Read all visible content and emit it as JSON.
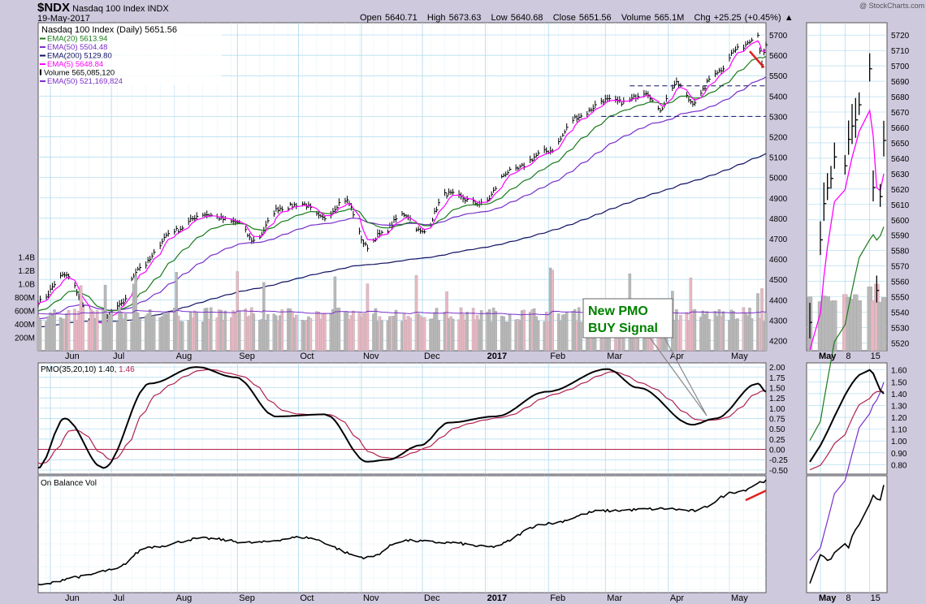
{
  "header": {
    "symbol": "$NDX",
    "name": "Nasdaq 100 Index",
    "exchange": "INDX",
    "date": "19-May-2017",
    "open": "Open 5640.71",
    "high": "High 5673.63",
    "low": "Low 5640.68",
    "close": "Close 5651.56",
    "volume": "Volume 565.1M",
    "change": "Chg +25.25 (+0.45%)",
    "watermark": "@ StockCharts.com"
  },
  "legend": [
    {
      "label": "Nasdaq 100 Index (Daily) 5651.56",
      "color": "#000000"
    },
    {
      "label": "EMA(20) 5613.94",
      "color": "#1a7a1a"
    },
    {
      "label": "EMA(50) 5504.48",
      "color": "#7a2fc8"
    },
    {
      "label": "EMA(200) 5129.80",
      "color": "#101060"
    },
    {
      "label": "EMA(5) 5648.84",
      "color": "#ff00ff"
    },
    {
      "label": "Volume 565,085,120",
      "color": "#000000"
    },
    {
      "label": "EMA(50) 521,169,824",
      "color": "#7a2fc8"
    }
  ],
  "pmo_label": "PMO(35,20,10) 1.40, 1.46",
  "obv_label": "On Balance Vol",
  "annotation": {
    "line1": "New PMO",
    "line2": "BUY Signal"
  },
  "months": [
    "Jun",
    "Jul",
    "Aug",
    "Sep",
    "Oct",
    "Nov",
    "Dec",
    "2017",
    "Feb",
    "Mar",
    "Apr",
    "May"
  ],
  "inset_months": [
    "May",
    "8",
    "15"
  ],
  "price_ticks": [
    "5700",
    "5600",
    "5500",
    "5400",
    "5300",
    "5200",
    "5100",
    "5000",
    "4900",
    "4800",
    "4700",
    "4600",
    "4500",
    "4400",
    "4300",
    "4200"
  ],
  "volume_ticks": [
    "1.4B",
    "1.2B",
    "1.0B",
    "800M",
    "600M",
    "400M",
    "200M"
  ],
  "pmo_ticks": [
    "2.00",
    "1.75",
    "1.50",
    "1.25",
    "1.00",
    "0.75",
    "0.50",
    "0.25",
    "0.00",
    "-0.25",
    "-0.50"
  ],
  "inset_price_ticks": [
    "5720",
    "5710",
    "5700",
    "5690",
    "5680",
    "5670",
    "5660",
    "5650",
    "5640",
    "5630",
    "5620",
    "5610",
    "5600",
    "5590",
    "5580",
    "5570",
    "5560",
    "5550",
    "5540",
    "5530",
    "5520"
  ],
  "inset_pmo_ticks": [
    "1.60",
    "1.50",
    "1.40",
    "1.30",
    "1.20",
    "1.10",
    "1.00",
    "0.90",
    "0.80"
  ],
  "colors": {
    "panel_bg": "#ffffff",
    "grid": "#a8d8ee",
    "price": "#000000",
    "ema20": "#1a7a1a",
    "ema50": "#7a2fc8",
    "ema200": "#101060",
    "ema5": "#ff00ff",
    "vol_up": "#b8b8b8",
    "vol_down": "#e8b8c4",
    "pmo": "#000000",
    "pmo_signal": "#b0204a",
    "zero_line": "#b0204a",
    "annotation_text": "#008000",
    "trend": "#e02020"
  },
  "chart_data": {
    "type": "line",
    "title": "Nasdaq 100 Index (Daily)",
    "ylim_price": [
      4150,
      5760
    ],
    "ylim_volume": [
      0,
      1600000000
    ],
    "ylim_pmo": [
      -0.6,
      2.1
    ],
    "price_anchors": [
      [
        "2016-05-26",
        4390
      ],
      [
        "2016-06-08",
        4520
      ],
      [
        "2016-06-24",
        4260
      ],
      [
        "2016-07-05",
        4370
      ],
      [
        "2016-07-15",
        4560
      ],
      [
        "2016-08-01",
        4740
      ],
      [
        "2016-08-15",
        4820
      ],
      [
        "2016-09-01",
        4780
      ],
      [
        "2016-09-09",
        4690
      ],
      [
        "2016-09-22",
        4850
      ],
      [
        "2016-10-03",
        4870
      ],
      [
        "2016-10-13",
        4800
      ],
      [
        "2016-10-24",
        4890
      ],
      [
        "2016-11-04",
        4660
      ],
      [
        "2016-11-10",
        4720
      ],
      [
        "2016-11-22",
        4820
      ],
      [
        "2016-12-01",
        4730
      ],
      [
        "2016-12-13",
        4920
      ],
      [
        "2016-12-30",
        4870
      ],
      [
        "2017-01-13",
        5030
      ],
      [
        "2017-02-01",
        5130
      ],
      [
        "2017-02-16",
        5300
      ],
      [
        "2017-03-01",
        5380
      ],
      [
        "2017-03-10",
        5370
      ],
      [
        "2017-03-21",
        5420
      ],
      [
        "2017-03-27",
        5330
      ],
      [
        "2017-04-05",
        5460
      ],
      [
        "2017-04-13",
        5370
      ],
      [
        "2017-04-25",
        5520
      ],
      [
        "2017-05-05",
        5630
      ],
      [
        "2017-05-15",
        5700
      ],
      [
        "2017-05-17",
        5560
      ],
      [
        "2017-05-19",
        5651.56
      ]
    ],
    "ema20": "5613.94",
    "ema50": "5504.48",
    "ema200": "5129.80",
    "ema5": "5648.84",
    "volume_last": "565,085,120",
    "volume_ema50": "521,169,824",
    "pmo_anchors": [
      [
        "2016-05-26",
        -0.45
      ],
      [
        "2016-06-08",
        0.75
      ],
      [
        "2016-06-27",
        -0.45
      ],
      [
        "2016-07-20",
        1.6
      ],
      [
        "2016-08-12",
        2.0
      ],
      [
        "2016-08-31",
        1.75
      ],
      [
        "2016-09-20",
        0.8
      ],
      [
        "2016-10-14",
        0.85
      ],
      [
        "2016-11-04",
        -0.3
      ],
      [
        "2016-11-14",
        -0.25
      ],
      [
        "2016-11-30",
        0.1
      ],
      [
        "2016-12-14",
        0.65
      ],
      [
        "2017-01-06",
        0.8
      ],
      [
        "2017-01-31",
        1.4
      ],
      [
        "2017-03-02",
        1.95
      ],
      [
        "2017-03-17",
        1.5
      ],
      [
        "2017-04-13",
        0.6
      ],
      [
        "2017-04-24",
        0.75
      ],
      [
        "2017-05-15",
        1.6
      ],
      [
        "2017-05-19",
        1.4
      ]
    ],
    "pmo": "1.40",
    "pmo_signal": "1.46",
    "obv_anchors": [
      [
        "2016-05-26",
        0.02
      ],
      [
        "2016-06-15",
        0.1
      ],
      [
        "2016-07-01",
        0.16
      ],
      [
        "2016-07-20",
        0.38
      ],
      [
        "2016-08-15",
        0.46
      ],
      [
        "2016-09-09",
        0.42
      ],
      [
        "2016-10-03",
        0.47
      ],
      [
        "2016-11-04",
        0.28
      ],
      [
        "2016-11-22",
        0.44
      ],
      [
        "2016-12-14",
        0.42
      ],
      [
        "2017-01-03",
        0.38
      ],
      [
        "2017-01-31",
        0.6
      ],
      [
        "2017-02-28",
        0.72
      ],
      [
        "2017-03-31",
        0.74
      ],
      [
        "2017-04-13",
        0.72
      ],
      [
        "2017-05-05",
        0.9
      ],
      [
        "2017-05-19",
        1.0
      ]
    ],
    "support_resistance": [
      5300,
      5450
    ],
    "grid": true,
    "legend_position": "top-left"
  }
}
